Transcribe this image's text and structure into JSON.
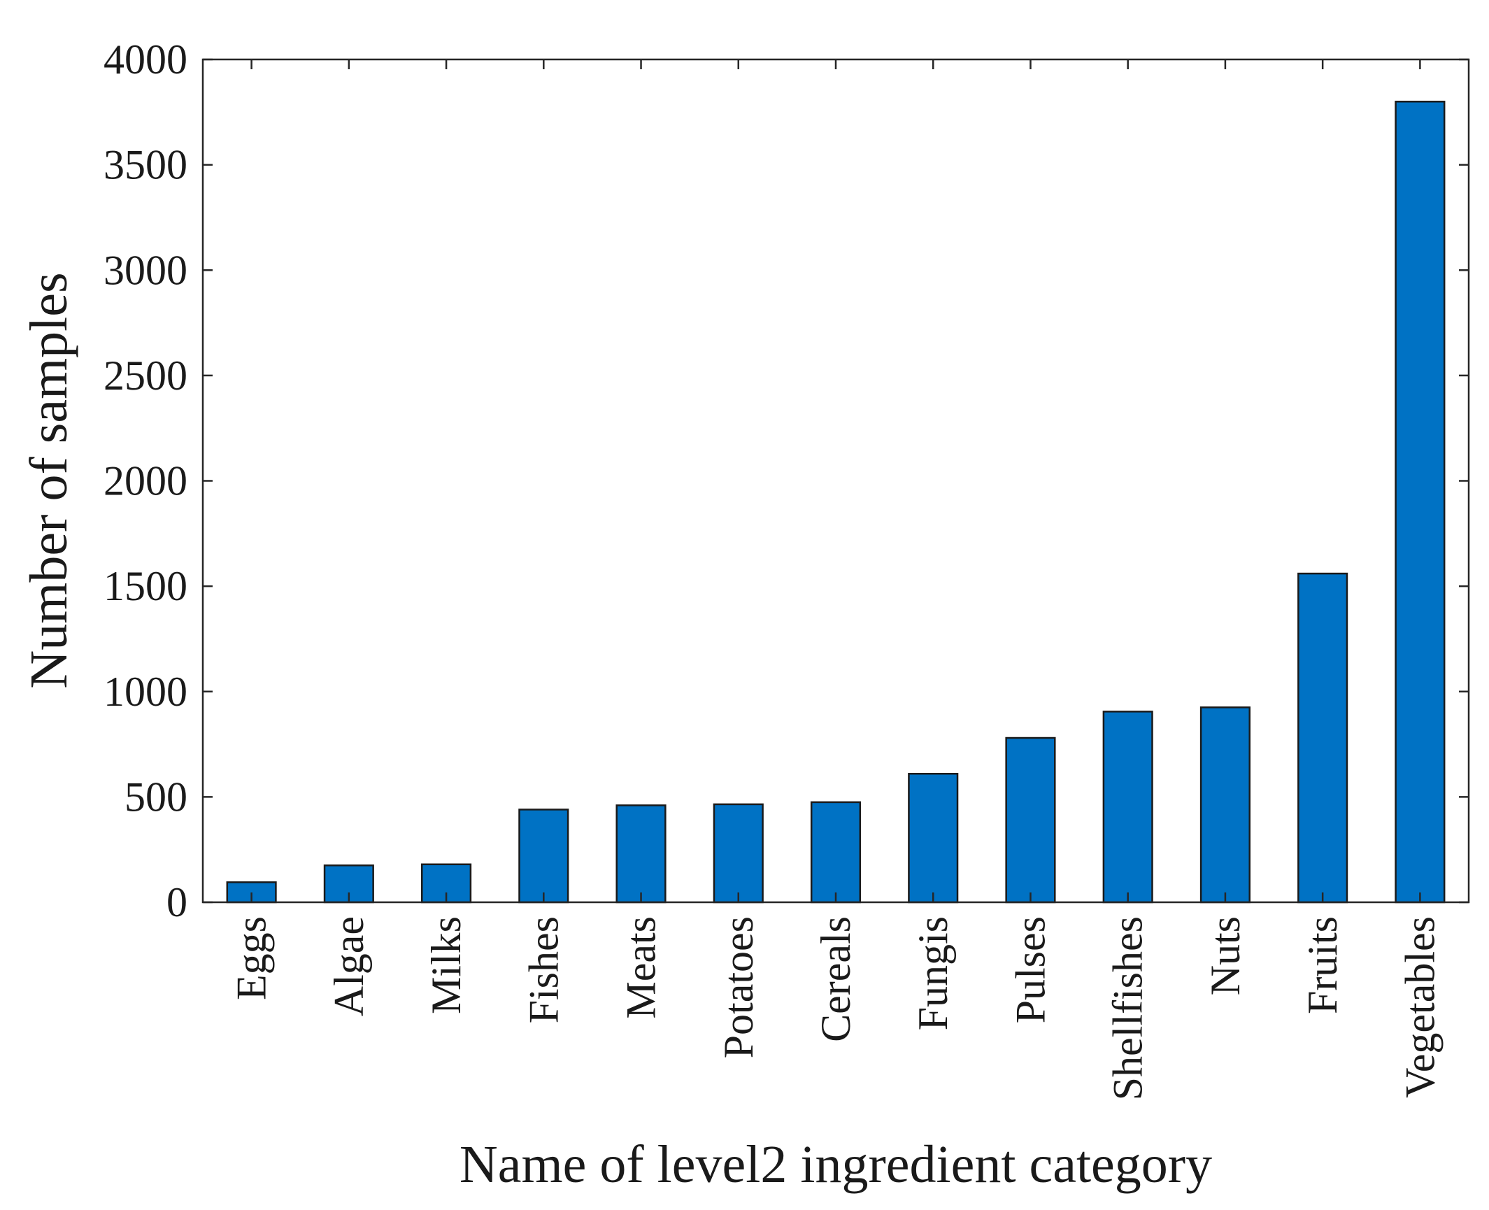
{
  "chart_data": {
    "type": "bar",
    "title": "",
    "xlabel": "Name of level2 ingredient category",
    "ylabel": "Number of samples",
    "categories": [
      "Eggs",
      "Algae",
      "Milks",
      "Fishes",
      "Meats",
      "Potatoes",
      "Cereals",
      "Fungis",
      "Pulses",
      "Shellfishes",
      "Nuts",
      "Fruits",
      "Vegetables"
    ],
    "values": [
      95,
      175,
      180,
      440,
      460,
      465,
      475,
      610,
      780,
      905,
      925,
      1560,
      3800
    ],
    "ylim": [
      0,
      4000
    ],
    "yticks": [
      0,
      500,
      1000,
      1500,
      2000,
      2500,
      3000,
      3500,
      4000
    ],
    "bar_color": "#0072C4",
    "grid": false,
    "legend": "none"
  }
}
